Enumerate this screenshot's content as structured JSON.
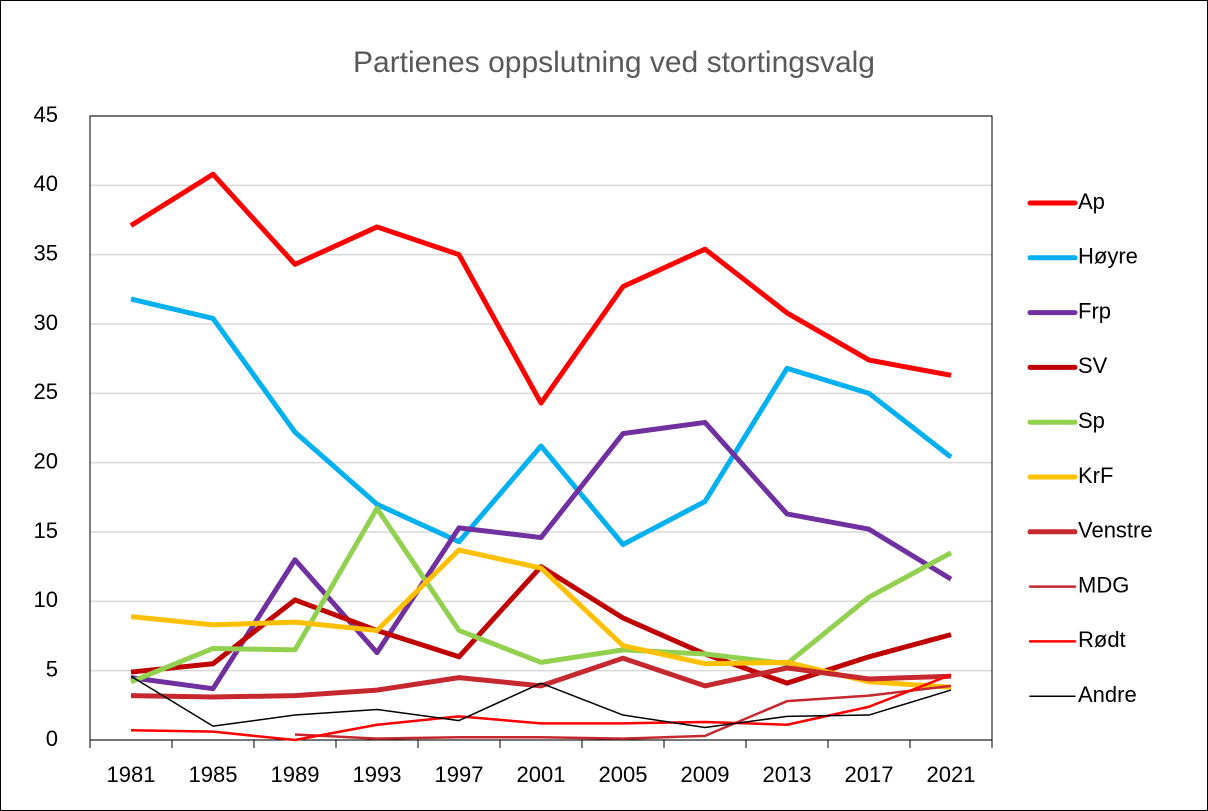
{
  "chart_data": {
    "type": "line",
    "title": "Partienes oppslutning ved stortingsvalg",
    "categories": [
      "1981",
      "1985",
      "1989",
      "1993",
      "1997",
      "2001",
      "2005",
      "2009",
      "2013",
      "2017",
      "2021"
    ],
    "ylim": [
      0,
      45
    ],
    "yticks": [
      0,
      5,
      10,
      15,
      20,
      25,
      30,
      35,
      40,
      45
    ],
    "grid": true,
    "legend": "right",
    "series": [
      {
        "name": "Ap",
        "color": "#ff0000",
        "values": [
          37.1,
          40.8,
          34.3,
          37.0,
          35.0,
          24.3,
          32.7,
          35.4,
          30.8,
          27.4,
          26.3
        ]
      },
      {
        "name": "Høyre",
        "color": "#00b0f0",
        "values": [
          31.8,
          30.4,
          22.2,
          17.0,
          14.3,
          21.2,
          14.1,
          17.2,
          26.8,
          25.0,
          20.4
        ]
      },
      {
        "name": "Frp",
        "color": "#7030a0",
        "values": [
          4.5,
          3.7,
          13.0,
          6.3,
          15.3,
          14.6,
          22.1,
          22.9,
          16.3,
          15.2,
          11.6
        ]
      },
      {
        "name": "SV",
        "color": "#c00000",
        "values": [
          4.9,
          5.5,
          10.1,
          7.9,
          6.0,
          12.5,
          8.8,
          6.2,
          4.1,
          6.0,
          7.6
        ]
      },
      {
        "name": "Sp",
        "color": "#92d050",
        "values": [
          4.2,
          6.6,
          6.5,
          16.7,
          7.9,
          5.6,
          6.5,
          6.2,
          5.5,
          10.3,
          13.5
        ]
      },
      {
        "name": "KrF",
        "color": "#ffc000",
        "values": [
          8.9,
          8.3,
          8.5,
          7.9,
          13.7,
          12.4,
          6.8,
          5.5,
          5.6,
          4.2,
          3.8
        ]
      },
      {
        "name": "Venstre",
        "color": "#c5282f",
        "values": [
          3.2,
          3.1,
          3.2,
          3.6,
          4.5,
          3.9,
          5.9,
          3.9,
          5.2,
          4.4,
          4.6
        ]
      },
      {
        "name": "MDG",
        "color": "#c5282f",
        "values": [
          null,
          null,
          0.4,
          0.1,
          0.2,
          0.2,
          0.1,
          0.3,
          2.8,
          3.2,
          3.9
        ]
      },
      {
        "name": "Rødt",
        "color": "#ff0000",
        "values": [
          0.7,
          0.6,
          0.0,
          1.1,
          1.7,
          1.2,
          1.2,
          1.3,
          1.1,
          2.4,
          4.7
        ]
      },
      {
        "name": "Andre",
        "color": "#000000",
        "values": [
          4.6,
          1.0,
          1.8,
          2.2,
          1.4,
          4.1,
          1.8,
          0.9,
          1.7,
          1.8,
          3.6
        ]
      }
    ]
  }
}
